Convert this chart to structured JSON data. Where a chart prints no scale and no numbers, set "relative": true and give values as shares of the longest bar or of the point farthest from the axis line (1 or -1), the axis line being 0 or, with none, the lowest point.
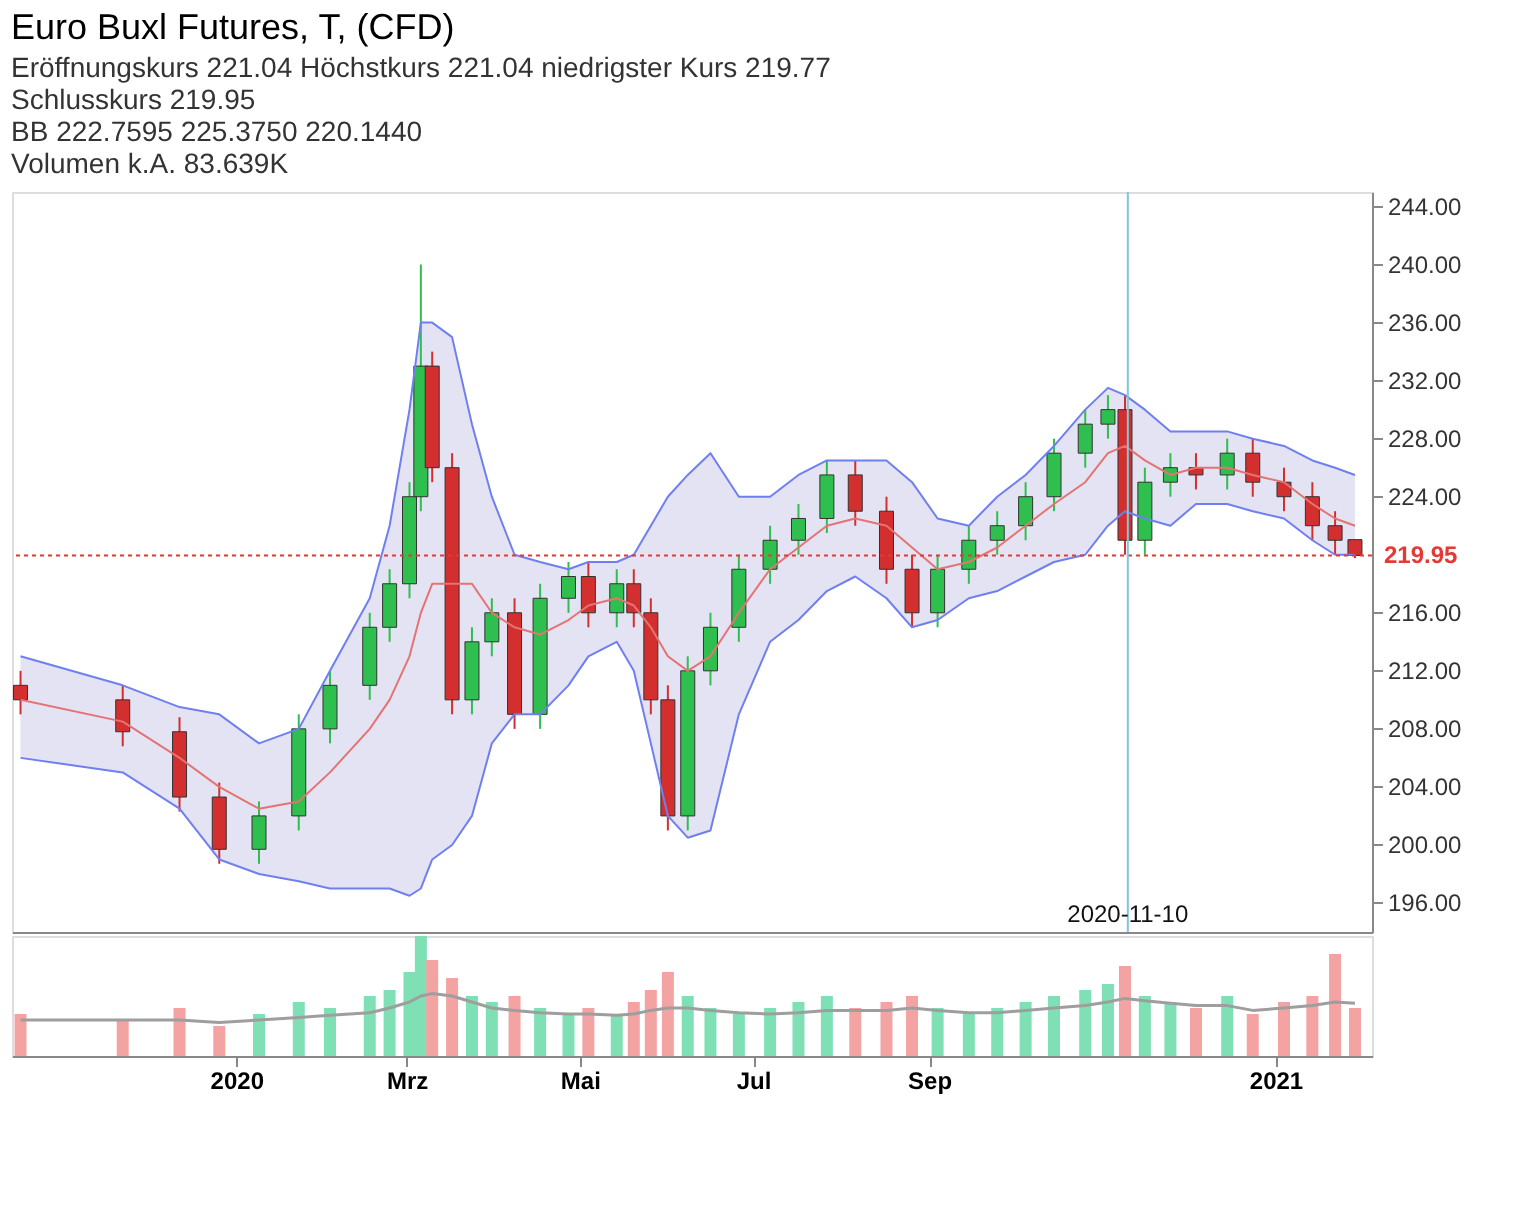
{
  "chart_data": [
    {
      "type": "candlestick",
      "title": "Euro Buxl Futures, T, (CFD)",
      "annotations": [
        "Eröffnungskurs 221.04  Höchstkurs 221.04  niedrigster Kurs 219.77",
        "Schlusskurs 219.95",
        "BB  222.7595  225.3750  220.1440",
        "Volumen  k.A.  83.639K"
      ],
      "x": [
        "2019-10-17",
        "2019-11-22",
        "2019-12-12",
        "2019-12-26",
        "2020-01-09",
        "2020-01-23",
        "2020-02-03",
        "2020-02-17",
        "2020-02-24",
        "2020-03-02",
        "2020-03-06",
        "2020-03-10",
        "2020-03-17",
        "2020-03-24",
        "2020-03-31",
        "2020-04-08",
        "2020-04-17",
        "2020-04-27",
        "2020-05-04",
        "2020-05-14",
        "2020-05-20",
        "2020-05-26",
        "2020-06-01",
        "2020-06-08",
        "2020-06-16",
        "2020-06-26",
        "2020-07-07",
        "2020-07-17",
        "2020-07-27",
        "2020-08-06",
        "2020-08-17",
        "2020-08-26",
        "2020-09-04",
        "2020-09-15",
        "2020-09-25",
        "2020-10-05",
        "2020-10-15",
        "2020-10-26",
        "2020-11-03",
        "2020-11-09",
        "2020-11-16",
        "2020-11-25",
        "2020-12-04",
        "2020-12-15",
        "2020-12-24",
        "2021-01-04",
        "2021-01-14",
        "2021-01-22",
        "2021-01-29"
      ],
      "ohlc": [
        [
          211,
          212,
          209,
          210
        ],
        [
          210,
          211,
          206.8,
          207.8
        ],
        [
          207.8,
          208.8,
          202.3,
          203.3
        ],
        [
          203.3,
          204.3,
          198.7,
          199.7
        ],
        [
          199.7,
          203,
          198.7,
          202
        ],
        [
          202,
          209,
          201,
          208
        ],
        [
          208,
          212,
          207,
          211
        ],
        [
          211,
          216,
          210,
          215
        ],
        [
          215,
          219,
          214,
          218
        ],
        [
          218,
          225,
          217,
          224
        ],
        [
          224,
          240,
          223,
          233
        ],
        [
          233,
          234,
          225,
          226
        ],
        [
          226,
          227,
          209,
          210
        ],
        [
          210,
          215,
          209,
          214
        ],
        [
          214,
          217,
          213,
          216
        ],
        [
          216,
          217,
          208,
          209
        ],
        [
          209,
          218,
          208,
          217
        ],
        [
          217,
          219.5,
          216,
          218.5
        ],
        [
          218.5,
          219.5,
          215,
          216
        ],
        [
          216,
          219,
          215,
          218
        ],
        [
          218,
          219,
          215,
          216
        ],
        [
          216,
          217,
          209,
          210
        ],
        [
          210,
          211,
          201,
          202
        ],
        [
          202,
          213,
          201,
          212
        ],
        [
          212,
          216,
          211,
          215
        ],
        [
          215,
          220,
          214,
          219
        ],
        [
          219,
          222,
          218,
          221
        ],
        [
          221,
          223.5,
          220,
          222.5
        ],
        [
          222.5,
          226.5,
          221.5,
          225.5
        ],
        [
          225.5,
          226.5,
          222,
          223
        ],
        [
          223,
          224,
          218,
          219
        ],
        [
          219,
          220,
          215,
          216
        ],
        [
          216,
          220,
          215,
          219
        ],
        [
          219,
          222,
          218,
          221
        ],
        [
          221,
          223,
          220,
          222
        ],
        [
          222,
          225,
          221,
          224
        ],
        [
          224,
          228,
          223,
          227
        ],
        [
          227,
          230,
          226,
          229
        ],
        [
          229,
          231,
          228,
          230
        ],
        [
          230,
          231,
          220,
          221
        ],
        [
          221,
          226,
          220,
          225
        ],
        [
          225,
          227,
          224,
          226
        ],
        [
          226,
          227,
          224.5,
          225.5
        ],
        [
          225.5,
          228,
          224.5,
          227
        ],
        [
          227,
          228,
          224,
          225
        ],
        [
          225,
          226,
          223,
          224
        ],
        [
          224,
          225,
          221,
          222
        ],
        [
          222,
          223,
          220,
          221
        ],
        [
          221.04,
          221.04,
          219.77,
          219.95
        ]
      ],
      "colors": [
        "#d32f2f",
        "#d32f2f",
        "#d32f2f",
        "#d32f2f",
        "#2fbf4f",
        "#2fbf4f",
        "#2fbf4f",
        "#2fbf4f",
        "#2fbf4f",
        "#2fbf4f",
        "#2fbf4f",
        "#d32f2f",
        "#d32f2f",
        "#2fbf4f",
        "#2fbf4f",
        "#d32f2f",
        "#2fbf4f",
        "#2fbf4f",
        "#d32f2f",
        "#2fbf4f",
        "#d32f2f",
        "#d32f2f",
        "#d32f2f",
        "#2fbf4f",
        "#2fbf4f",
        "#2fbf4f",
        "#2fbf4f",
        "#2fbf4f",
        "#2fbf4f",
        "#d32f2f",
        "#d32f2f",
        "#d32f2f",
        "#2fbf4f",
        "#2fbf4f",
        "#2fbf4f",
        "#2fbf4f",
        "#2fbf4f",
        "#2fbf4f",
        "#2fbf4f",
        "#d32f2f",
        "#2fbf4f",
        "#2fbf4f",
        "#d32f2f",
        "#2fbf4f",
        "#d32f2f",
        "#d32f2f",
        "#d32f2f",
        "#d32f2f",
        "#d32f2f"
      ],
      "series": [
        {
          "type": "line",
          "color": "#e57373",
          "values": [
            210,
            208.5,
            206,
            204,
            202.5,
            203,
            205,
            208,
            210,
            213,
            216,
            218,
            218,
            218,
            216,
            215,
            214.5,
            215.5,
            216.5,
            217,
            216.5,
            215,
            213,
            212,
            213,
            216,
            219,
            220.5,
            222,
            222.5,
            222,
            220.5,
            219,
            219.5,
            220.5,
            222,
            223.5,
            225,
            227,
            227.5,
            226.5,
            225.5,
            226,
            226,
            225.5,
            225,
            223.5,
            222.5,
            222
          ],
          "upper": [
            213,
            211,
            209.5,
            209,
            207,
            208,
            212,
            217,
            222,
            230,
            236,
            236,
            235,
            229,
            224,
            220,
            219.5,
            219,
            219.5,
            219.5,
            220,
            222,
            224,
            225.5,
            227,
            224,
            224,
            225.5,
            226.5,
            226.5,
            226.5,
            225,
            222.5,
            222,
            224,
            225.5,
            227.5,
            230,
            231.5,
            231,
            230,
            228.5,
            228.5,
            228.5,
            228,
            227.5,
            226.5,
            226,
            225.5
          ],
          "lower": [
            206,
            205,
            202.5,
            199,
            198,
            197.5,
            197,
            197,
            197,
            196.5,
            197,
            199,
            200,
            202,
            207,
            209,
            209,
            211,
            213,
            214,
            212,
            207,
            202,
            200.5,
            201,
            209,
            214,
            215.5,
            217.5,
            218.5,
            217,
            215,
            215.5,
            217,
            217.5,
            218.5,
            219.5,
            220,
            222,
            223,
            222.5,
            222,
            223.5,
            223.5,
            223,
            222.5,
            221,
            220,
            220
          ]
        },
        {
          "type": "line",
          "color": "#6f7ff0",
          "values": [
            213,
            211,
            209.5,
            209,
            207,
            208,
            212,
            217,
            222,
            230,
            236,
            236,
            235,
            229,
            224,
            220,
            219.5,
            219,
            219.5,
            219.5,
            220,
            222,
            224,
            225.5,
            227,
            224,
            224,
            225.5,
            226.5,
            226.5,
            226.5,
            225,
            222.5,
            222,
            224,
            225.5,
            227.5,
            230,
            231.5,
            231,
            230,
            228.5,
            228.5,
            228.5,
            228,
            227.5,
            226.5,
            226,
            225.5
          ]
        },
        {
          "type": "line",
          "color": "#6f7ff0",
          "values": [
            206,
            205,
            202.5,
            199,
            198,
            197.5,
            197,
            197,
            197,
            196.5,
            197,
            199,
            200,
            202,
            207,
            209,
            209,
            211,
            213,
            214,
            212,
            207,
            202,
            200.5,
            201,
            209,
            214,
            215.5,
            217.5,
            218.5,
            217,
            215,
            215.5,
            217,
            217.5,
            218.5,
            219.5,
            220,
            222,
            223,
            222.5,
            222,
            223.5,
            223.5,
            223,
            222.5,
            221,
            220,
            220
          ]
        }
      ],
      "xlim": [
        "2019-10-14",
        "2021-02-04"
      ],
      "ylim": [
        194,
        245
      ],
      "yticks": [
        {
          "value": 196,
          "label": "196.00"
        },
        {
          "value": 200,
          "label": "200.00"
        },
        {
          "value": 204,
          "label": "204.00"
        },
        {
          "value": 208,
          "label": "208.00"
        },
        {
          "value": 212,
          "label": "212.00"
        },
        {
          "value": 216,
          "label": "216.00"
        },
        {
          "value": 224,
          "label": "224.00"
        },
        {
          "value": 228,
          "label": "228.00"
        },
        {
          "value": 232,
          "label": "232.00"
        },
        {
          "value": 236,
          "label": "236.00"
        },
        {
          "value": 240,
          "label": "240.00"
        },
        {
          "value": 244,
          "label": "244.00"
        }
      ],
      "tick_labels": "y",
      "ref_lines": [
        {
          "axis": "y",
          "value": 219.95,
          "label": "219.95",
          "color": "#e53935",
          "line_style": "dotted"
        },
        {
          "axis": "x",
          "value": "2020-11-10",
          "label": "2020-11-10",
          "color": "#7ec8d8",
          "line_style": "solid"
        }
      ]
    },
    {
      "type": "bar",
      "relative": true,
      "x": [
        "2019-10-17",
        "2019-11-22",
        "2019-12-12",
        "2019-12-26",
        "2020-01-09",
        "2020-01-23",
        "2020-02-03",
        "2020-02-17",
        "2020-02-24",
        "2020-03-02",
        "2020-03-06",
        "2020-03-10",
        "2020-03-17",
        "2020-03-24",
        "2020-03-31",
        "2020-04-08",
        "2020-04-17",
        "2020-04-27",
        "2020-05-04",
        "2020-05-14",
        "2020-05-20",
        "2020-05-26",
        "2020-06-01",
        "2020-06-08",
        "2020-06-16",
        "2020-06-26",
        "2020-07-07",
        "2020-07-17",
        "2020-07-27",
        "2020-08-06",
        "2020-08-17",
        "2020-08-26",
        "2020-09-04",
        "2020-09-15",
        "2020-09-25",
        "2020-10-05",
        "2020-10-15",
        "2020-10-26",
        "2020-11-03",
        "2020-11-09",
        "2020-11-16",
        "2020-11-25",
        "2020-12-04",
        "2020-12-15",
        "2020-12-24",
        "2021-01-04",
        "2021-01-14",
        "2021-01-22",
        "2021-01-29"
      ],
      "series": [
        {
          "type": "bar",
          "colors": [
            "#f4a3a3",
            "#f4a3a3",
            "#f4a3a3",
            "#f4a3a3",
            "#7fe0b5",
            "#7fe0b5",
            "#7fe0b5",
            "#7fe0b5",
            "#7fe0b5",
            "#7fe0b5",
            "#7fe0b5",
            "#f4a3a3",
            "#f4a3a3",
            "#7fe0b5",
            "#7fe0b5",
            "#f4a3a3",
            "#7fe0b5",
            "#7fe0b5",
            "#f4a3a3",
            "#7fe0b5",
            "#f4a3a3",
            "#f4a3a3",
            "#f4a3a3",
            "#7fe0b5",
            "#7fe0b5",
            "#7fe0b5",
            "#7fe0b5",
            "#7fe0b5",
            "#7fe0b5",
            "#f4a3a3",
            "#f4a3a3",
            "#f4a3a3",
            "#7fe0b5",
            "#7fe0b5",
            "#7fe0b5",
            "#7fe0b5",
            "#7fe0b5",
            "#7fe0b5",
            "#7fe0b5",
            "#f4a3a3",
            "#7fe0b5",
            "#7fe0b5",
            "#f4a3a3",
            "#7fe0b5",
            "#f4a3a3",
            "#f4a3a3",
            "#f4a3a3",
            "#f4a3a3",
            "#f4a3a3"
          ],
          "values": [
            0.35,
            0.3,
            0.4,
            0.25,
            0.35,
            0.45,
            0.4,
            0.5,
            0.55,
            0.7,
            1.0,
            0.8,
            0.65,
            0.5,
            0.45,
            0.5,
            0.4,
            0.35,
            0.4,
            0.35,
            0.45,
            0.55,
            0.7,
            0.5,
            0.4,
            0.35,
            0.4,
            0.45,
            0.5,
            0.4,
            0.45,
            0.5,
            0.4,
            0.35,
            0.4,
            0.45,
            0.5,
            0.55,
            0.6,
            0.75,
            0.5,
            0.45,
            0.4,
            0.5,
            0.35,
            0.45,
            0.5,
            0.85,
            0.4
          ]
        },
        {
          "type": "line",
          "color": "#9e9e9e",
          "values": [
            0.3,
            0.3,
            0.3,
            0.28,
            0.3,
            0.32,
            0.34,
            0.36,
            0.4,
            0.45,
            0.5,
            0.52,
            0.5,
            0.45,
            0.4,
            0.38,
            0.36,
            0.35,
            0.35,
            0.34,
            0.35,
            0.38,
            0.4,
            0.4,
            0.38,
            0.36,
            0.35,
            0.36,
            0.38,
            0.38,
            0.38,
            0.4,
            0.38,
            0.36,
            0.36,
            0.38,
            0.4,
            0.42,
            0.45,
            0.48,
            0.46,
            0.44,
            0.42,
            0.42,
            0.38,
            0.4,
            0.42,
            0.45,
            0.44
          ]
        }
      ],
      "xlim": [
        "2019-10-14",
        "2021-02-04"
      ],
      "xticks": [
        {
          "value": "2020-01-01",
          "label": "2020"
        },
        {
          "value": "2020-03-01",
          "label": "Mrz"
        },
        {
          "value": "2020-05-01",
          "label": "Mai"
        },
        {
          "value": "2020-07-01",
          "label": "Jul"
        },
        {
          "value": "2020-09-01",
          "label": "Sep"
        },
        {
          "value": "2021-01-01",
          "label": "2021"
        }
      ],
      "tick_labels": "x"
    }
  ]
}
